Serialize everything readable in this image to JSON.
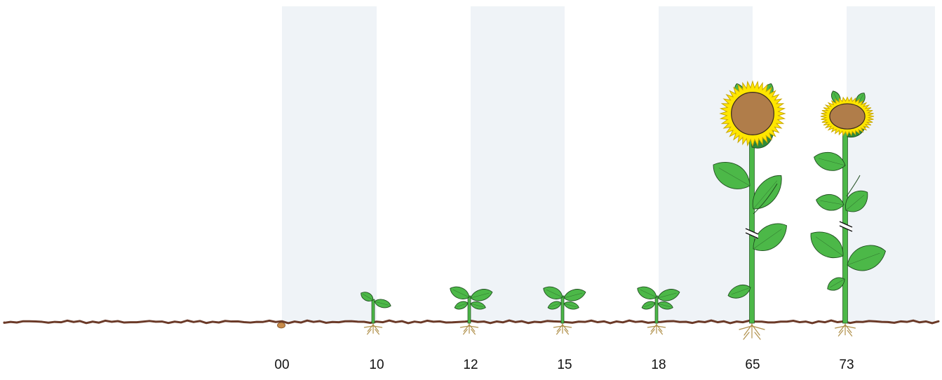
{
  "diagram": {
    "stages": [
      {
        "code": "00",
        "type": "seed"
      },
      {
        "code": "10",
        "type": "cotyledons"
      },
      {
        "code": "12",
        "type": "two-leaves"
      },
      {
        "code": "15",
        "type": "two-leaves"
      },
      {
        "code": "18",
        "type": "two-leaves"
      },
      {
        "code": "65",
        "type": "flowering"
      },
      {
        "code": "73",
        "type": "ripening"
      }
    ],
    "colors": {
      "band": "#eff3f7",
      "soil": "#6b3a28",
      "leaf": "#4cb848",
      "leaf_dark": "#2e8b3a",
      "outline": "#1f4d1f",
      "petal": "#ffe600",
      "petal_outline": "#c9a800",
      "head": "#b07d4a",
      "root": "#b0904a",
      "seed": "#c88c4a"
    }
  }
}
